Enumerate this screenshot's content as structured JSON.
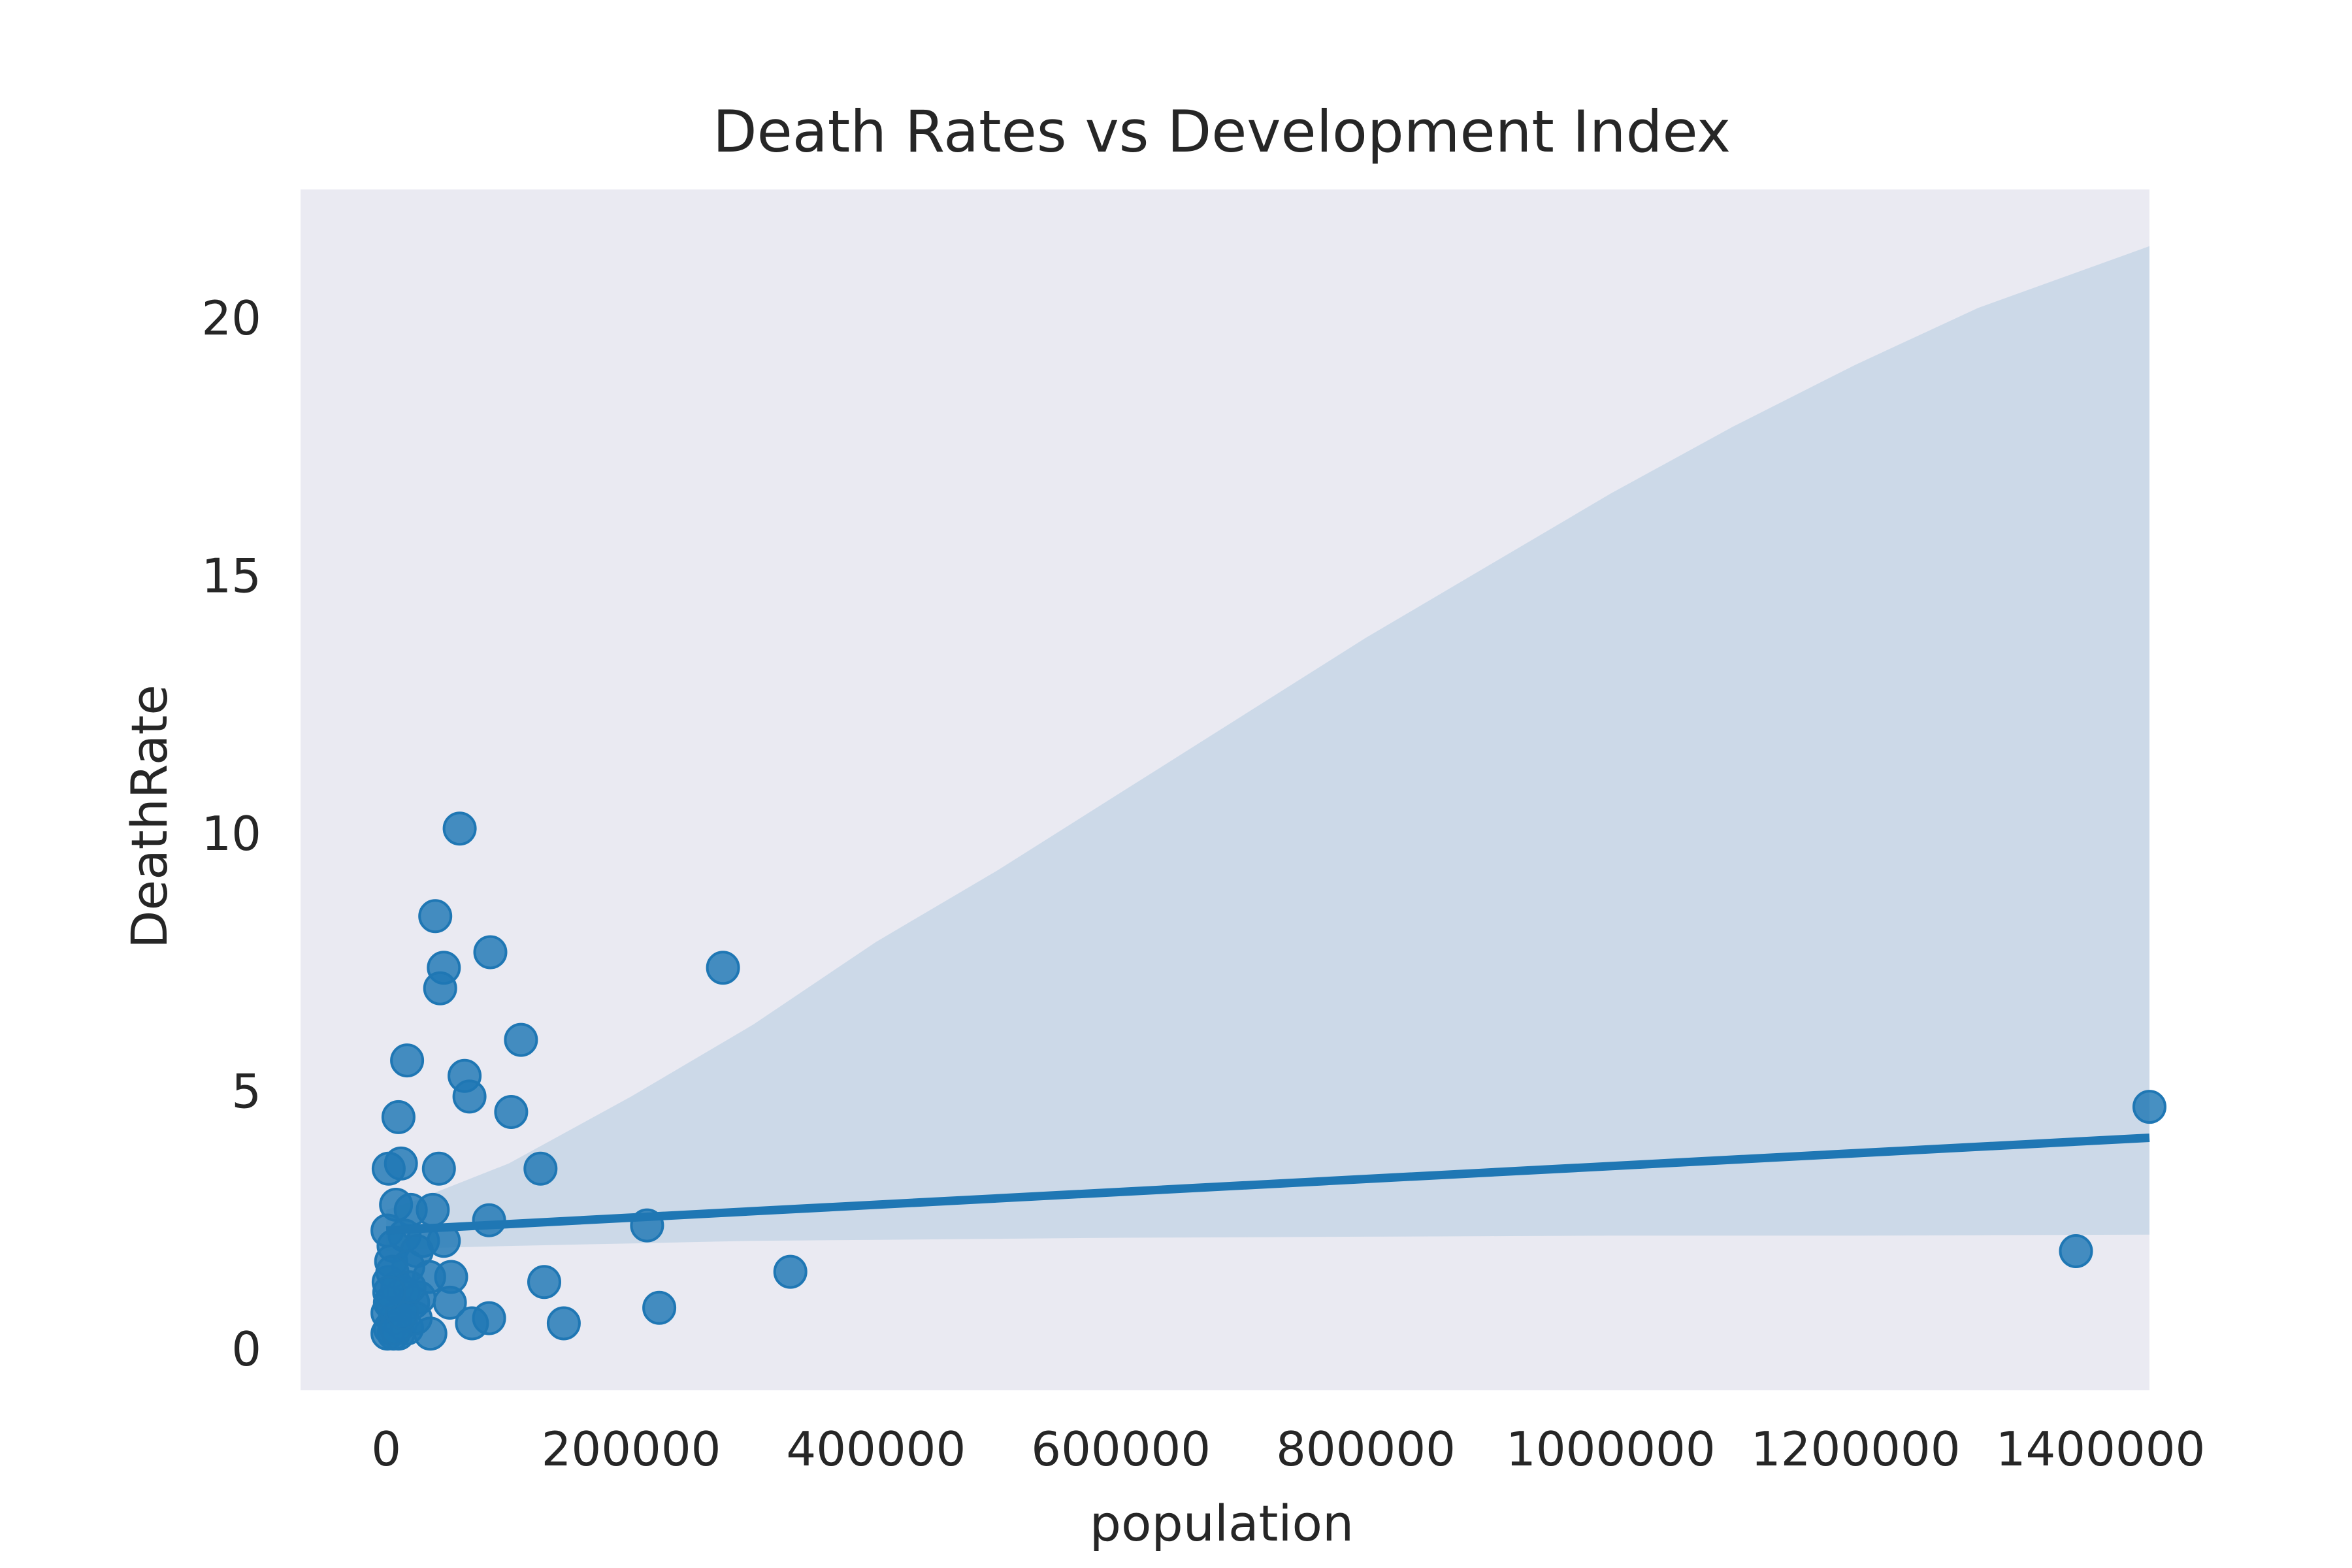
{
  "chart_data": {
    "type": "scatter",
    "title": "Death Rates vs Development Index",
    "xlabel": "population",
    "ylabel": "DeathRate",
    "xlim": [
      -70000,
      1440000
    ],
    "ylim": [
      -0.8,
      22.5
    ],
    "x_ticks": [
      0,
      200000,
      400000,
      600000,
      800000,
      1000000,
      1200000,
      1400000
    ],
    "x_tick_labels": [
      "0",
      "200000",
      "400000",
      "600000",
      "800000",
      "1000000",
      "1200000",
      "1400000"
    ],
    "y_ticks": [
      0,
      5,
      10,
      15,
      20
    ],
    "y_tick_labels": [
      "0",
      "5",
      "10",
      "15",
      "20"
    ],
    "grid": false,
    "colors": {
      "plot_background": "#eaeaf2",
      "points": "#1f77b4",
      "regression_line": "#1f77b4",
      "confidence_band": "#c7d6e6"
    },
    "regression": {
      "x": [
        0,
        1440000
      ],
      "y": [
        2.3,
        4.1
      ]
    },
    "confidence_band": {
      "x": [
        0,
        20000,
        100000,
        200000,
        300000,
        400000,
        500000,
        600000,
        700000,
        800000,
        900000,
        1000000,
        1100000,
        1200000,
        1300000,
        1440000
      ],
      "upper": [
        2.7,
        2.85,
        3.6,
        4.9,
        6.3,
        7.9,
        9.3,
        10.8,
        12.3,
        13.8,
        15.2,
        16.6,
        17.9,
        19.1,
        20.2,
        21.4
      ],
      "lower": [
        1.9,
        1.95,
        2.0,
        2.05,
        2.1,
        2.12,
        2.14,
        2.16,
        2.17,
        2.18,
        2.19,
        2.2,
        2.2,
        2.2,
        2.21,
        2.22
      ]
    },
    "series": [
      {
        "points": [
          [
            60000,
            10.1
          ],
          [
            40000,
            8.4
          ],
          [
            85000,
            7.7
          ],
          [
            47000,
            7.4
          ],
          [
            44000,
            7.0
          ],
          [
            275000,
            7.4
          ],
          [
            110000,
            6.0
          ],
          [
            17000,
            5.6
          ],
          [
            64000,
            5.3
          ],
          [
            68000,
            4.9
          ],
          [
            102000,
            4.6
          ],
          [
            10000,
            4.5
          ],
          [
            1440000,
            4.7
          ],
          [
            12000,
            3.6
          ],
          [
            2000,
            3.5
          ],
          [
            43000,
            3.5
          ],
          [
            126000,
            3.5
          ],
          [
            8000,
            2.8
          ],
          [
            20000,
            2.7
          ],
          [
            38000,
            2.7
          ],
          [
            84000,
            2.5
          ],
          [
            213000,
            2.4
          ],
          [
            1000,
            2.3
          ],
          [
            15000,
            2.2
          ],
          [
            30000,
            2.1
          ],
          [
            47000,
            2.1
          ],
          [
            6000,
            2.0
          ],
          [
            25000,
            1.9
          ],
          [
            1380000,
            1.9
          ],
          [
            4000,
            1.7
          ],
          [
            18000,
            1.6
          ],
          [
            330000,
            1.5
          ],
          [
            53000,
            1.4
          ],
          [
            35000,
            1.4
          ],
          [
            2000,
            1.3
          ],
          [
            9000,
            1.2
          ],
          [
            129000,
            1.3
          ],
          [
            14000,
            1.1
          ],
          [
            27000,
            1.0
          ],
          [
            4000,
            0.9
          ],
          [
            52000,
            0.9
          ],
          [
            22000,
            0.9
          ],
          [
            223000,
            0.8
          ],
          [
            1000,
            0.7
          ],
          [
            7000,
            0.6
          ],
          [
            84000,
            0.6
          ],
          [
            12000,
            0.5
          ],
          [
            70000,
            0.5
          ],
          [
            145000,
            0.5
          ],
          [
            3000,
            0.4
          ],
          [
            17000,
            0.4
          ],
          [
            36000,
            0.3
          ],
          [
            6000,
            0.3
          ],
          [
            1000,
            0.3
          ],
          [
            10000,
            0.3
          ],
          [
            24000,
            0.6
          ],
          [
            5000,
            1.5
          ],
          [
            3000,
            0.9
          ],
          [
            8000,
            0.4
          ],
          [
            13000,
            0.7
          ],
          [
            19000,
            1.2
          ],
          [
            2500,
            1.1
          ]
        ]
      }
    ]
  }
}
